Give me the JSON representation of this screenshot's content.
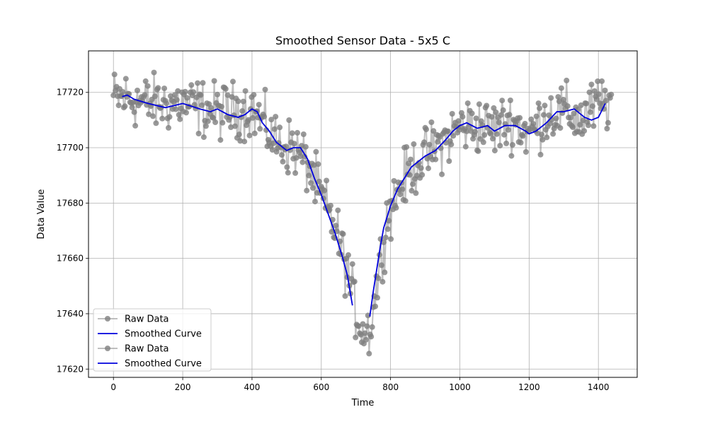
{
  "chart_data": {
    "type": "line",
    "title": "Smoothed Sensor Data - 5x5 C",
    "xlabel": "Time",
    "ylabel": "Data Value",
    "xlim": [
      -72,
      1512
    ],
    "ylim": [
      17617,
      17735
    ],
    "xticks": [
      0,
      200,
      400,
      600,
      800,
      1000,
      1200,
      1400
    ],
    "yticks": [
      17620,
      17640,
      17660,
      17680,
      17700,
      17720
    ],
    "grid": true,
    "legend_position": "lower-left",
    "legend": [
      "Raw Data",
      "Smoothed Curve",
      "Raw Data",
      "Smoothed Curve"
    ],
    "colors": {
      "raw": "#808080",
      "smoothed": "#0000dd"
    },
    "series": [
      {
        "name": "Raw Data",
        "style": "markers-with-lines",
        "x_start": 0,
        "x_step": 3,
        "n_points": 480,
        "noise_amplitude": 5,
        "trend_x": [
          0,
          40,
          100,
          200,
          300,
          400,
          430,
          470,
          520,
          560,
          600,
          640,
          670,
          700,
          720,
          740,
          760,
          790,
          830,
          880,
          930,
          980,
          1000,
          1050,
          1100,
          1150,
          1200,
          1250,
          1300,
          1350,
          1400,
          1440
        ],
        "trend_y": [
          17718,
          17718,
          17716,
          17716,
          17713,
          17714,
          17709,
          17702,
          17700,
          17694,
          17682,
          17671,
          17658,
          17641,
          17634,
          17634,
          17650,
          17675,
          17687,
          17695,
          17700,
          17705,
          17708,
          17708,
          17707,
          17710,
          17705,
          17712,
          17713,
          17710,
          17716,
          17716
        ]
      },
      {
        "name": "Smoothed Curve",
        "segments": [
          {
            "x": [
              25,
              40,
              60,
              100,
              150,
              200,
              250,
              280,
              300,
              330,
              360,
              380,
              400,
              415,
              430,
              450,
              470,
              500,
              520,
              540,
              560,
              580,
              600,
              620,
              640,
              660,
              675,
              690
            ],
            "y": [
              17718.5,
              17719,
              17717.5,
              17716,
              17714.5,
              17716,
              17714,
              17713,
              17714,
              17712,
              17711,
              17712,
              17714,
              17713,
              17709,
              17706,
              17702,
              17699,
              17700,
              17700,
              17696,
              17689,
              17683,
              17676,
              17669,
              17661,
              17654,
              17643
            ]
          },
          {
            "x": [
              740,
              750,
              760,
              770,
              780,
              800,
              820,
              840,
              860,
              880,
              900,
              930,
              960,
              980,
              1000,
              1020,
              1050,
              1080,
              1100,
              1130,
              1160,
              1190,
              1200,
              1220,
              1250,
              1280,
              1300,
              1330,
              1360,
              1380,
              1400,
              1420
            ],
            "y": [
              17639,
              17648,
              17656,
              17664,
              17671,
              17679,
              17685,
              17689,
              17693,
              17695,
              17697,
              17699,
              17703,
              17706,
              17708,
              17709,
              17707,
              17708,
              17706,
              17708,
              17708,
              17706,
              17705,
              17706,
              17709,
              17713,
              17713,
              17714,
              17711,
              17710,
              17711,
              17716
            ]
          }
        ]
      }
    ]
  }
}
